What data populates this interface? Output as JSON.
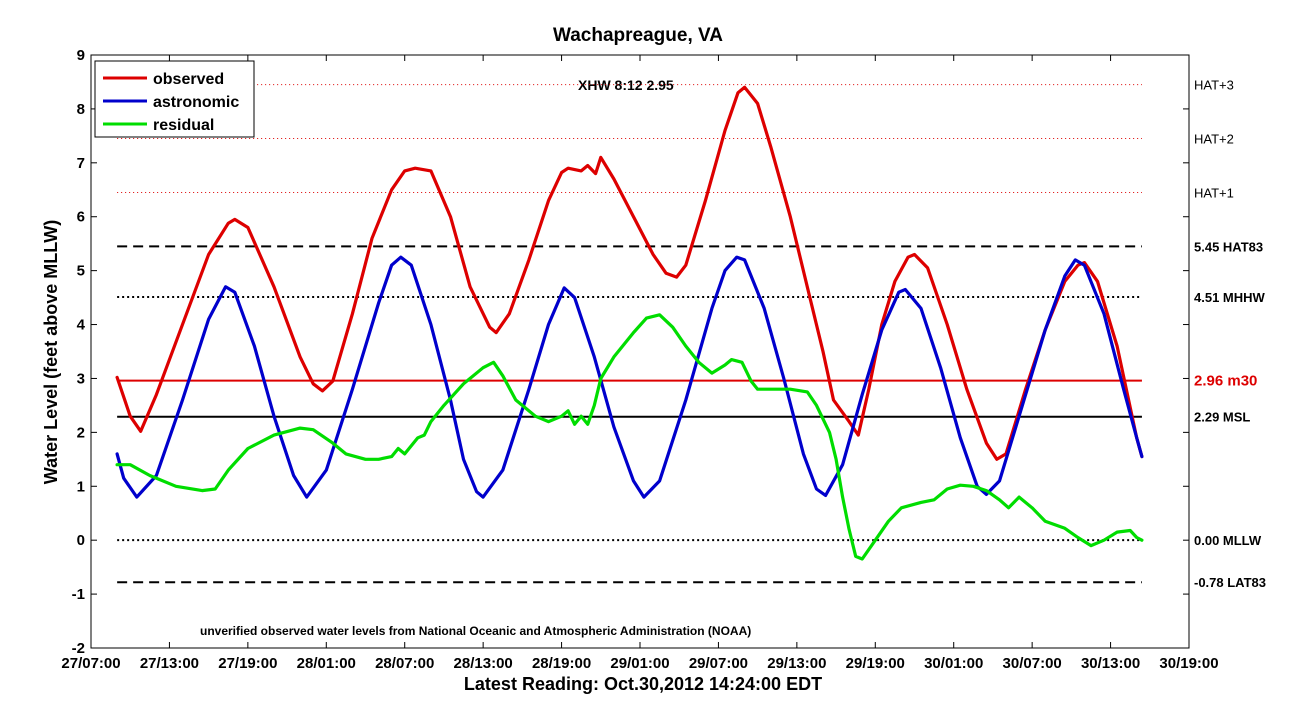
{
  "chart_data": {
    "type": "line",
    "title": "Wachapreague, VA",
    "ylabel": "Water Level (feet above MLLW)",
    "xlabel": "Latest Reading: Oct.30,2012 14:24:00 EDT",
    "note": "unverified observed water levels from National Oceanic and Atmospheric Administration (NOAA)",
    "annotation": "XHW 8:12 2.95",
    "xlim": [
      0,
      84
    ],
    "ylim": [
      -2,
      9
    ],
    "x_ticks": [
      {
        "x": 0,
        "label": "27/07:00"
      },
      {
        "x": 6,
        "label": "27/13:00"
      },
      {
        "x": 12,
        "label": "27/19:00"
      },
      {
        "x": 18,
        "label": "28/01:00"
      },
      {
        "x": 24,
        "label": "28/07:00"
      },
      {
        "x": 30,
        "label": "28/13:00"
      },
      {
        "x": 36,
        "label": "28/19:00"
      },
      {
        "x": 42,
        "label": "29/01:00"
      },
      {
        "x": 48,
        "label": "29/07:00"
      },
      {
        "x": 54,
        "label": "29/13:00"
      },
      {
        "x": 60,
        "label": "29/19:00"
      },
      {
        "x": 66,
        "label": "30/01:00"
      },
      {
        "x": 72,
        "label": "30/07:00"
      },
      {
        "x": 78,
        "label": "30/13:00"
      },
      {
        "x": 84,
        "label": "30/19:00"
      }
    ],
    "y_ticks": [
      -2,
      -1,
      0,
      1,
      2,
      3,
      4,
      5,
      6,
      7,
      8,
      9
    ],
    "grid": false,
    "legend_position": "top-left",
    "x_unit_note": "hours after 27/07:00",
    "series": [
      {
        "name": "observed",
        "color": "#dd0000",
        "points": [
          [
            2.0,
            3.02
          ],
          [
            3.0,
            2.3
          ],
          [
            3.8,
            2.02
          ],
          [
            5.0,
            2.7
          ],
          [
            7.0,
            4.0
          ],
          [
            9.0,
            5.3
          ],
          [
            10.5,
            5.88
          ],
          [
            11.0,
            5.95
          ],
          [
            12.0,
            5.8
          ],
          [
            14.0,
            4.7
          ],
          [
            16.0,
            3.4
          ],
          [
            17.0,
            2.9
          ],
          [
            17.7,
            2.77
          ],
          [
            18.5,
            2.95
          ],
          [
            20.0,
            4.2
          ],
          [
            21.5,
            5.6
          ],
          [
            23.0,
            6.5
          ],
          [
            24.0,
            6.85
          ],
          [
            24.8,
            6.9
          ],
          [
            26.0,
            6.85
          ],
          [
            27.5,
            6.0
          ],
          [
            29.0,
            4.7
          ],
          [
            30.5,
            3.95
          ],
          [
            31.0,
            3.85
          ],
          [
            32.0,
            4.2
          ],
          [
            33.5,
            5.2
          ],
          [
            35.0,
            6.3
          ],
          [
            36.0,
            6.82
          ],
          [
            36.5,
            6.9
          ],
          [
            37.5,
            6.85
          ],
          [
            38.0,
            6.95
          ],
          [
            38.6,
            6.8
          ],
          [
            39.0,
            7.1
          ],
          [
            40.0,
            6.7
          ],
          [
            41.5,
            6.0
          ],
          [
            43.0,
            5.3
          ],
          [
            44.0,
            4.95
          ],
          [
            44.8,
            4.88
          ],
          [
            45.5,
            5.1
          ],
          [
            47.0,
            6.3
          ],
          [
            48.5,
            7.6
          ],
          [
            49.5,
            8.3
          ],
          [
            50.0,
            8.4
          ],
          [
            51.0,
            8.1
          ],
          [
            52.0,
            7.3
          ],
          [
            53.5,
            6.0
          ],
          [
            55.0,
            4.5
          ],
          [
            56.0,
            3.5
          ],
          [
            56.8,
            2.6
          ],
          [
            58.0,
            2.2
          ],
          [
            58.7,
            1.95
          ],
          [
            59.5,
            2.8
          ],
          [
            60.5,
            4.0
          ],
          [
            61.5,
            4.8
          ],
          [
            62.5,
            5.25
          ],
          [
            63.0,
            5.3
          ],
          [
            64.0,
            5.05
          ],
          [
            65.5,
            4.0
          ],
          [
            67.0,
            2.8
          ],
          [
            68.5,
            1.8
          ],
          [
            69.3,
            1.5
          ],
          [
            70.0,
            1.6
          ],
          [
            71.5,
            2.8
          ],
          [
            73.0,
            3.9
          ],
          [
            74.5,
            4.8
          ],
          [
            75.5,
            5.1
          ],
          [
            76.0,
            5.15
          ],
          [
            77.0,
            4.8
          ],
          [
            78.5,
            3.6
          ],
          [
            80.0,
            1.9
          ],
          [
            80.4,
            1.55
          ]
        ]
      },
      {
        "name": "astronomic",
        "color": "#0000cc",
        "points": [
          [
            2.0,
            1.6
          ],
          [
            2.5,
            1.15
          ],
          [
            3.5,
            0.8
          ],
          [
            5.0,
            1.2
          ],
          [
            7.0,
            2.6
          ],
          [
            9.0,
            4.1
          ],
          [
            10.3,
            4.7
          ],
          [
            11.0,
            4.6
          ],
          [
            12.5,
            3.6
          ],
          [
            14.0,
            2.3
          ],
          [
            15.5,
            1.2
          ],
          [
            16.5,
            0.8
          ],
          [
            18.0,
            1.3
          ],
          [
            20.0,
            2.8
          ],
          [
            22.0,
            4.4
          ],
          [
            23.0,
            5.1
          ],
          [
            23.7,
            5.25
          ],
          [
            24.5,
            5.1
          ],
          [
            26.0,
            4.0
          ],
          [
            27.5,
            2.6
          ],
          [
            28.5,
            1.5
          ],
          [
            29.5,
            0.9
          ],
          [
            30.0,
            0.8
          ],
          [
            31.5,
            1.3
          ],
          [
            33.5,
            2.8
          ],
          [
            35.0,
            4.0
          ],
          [
            36.2,
            4.68
          ],
          [
            37.0,
            4.5
          ],
          [
            38.5,
            3.4
          ],
          [
            40.0,
            2.1
          ],
          [
            41.5,
            1.1
          ],
          [
            42.3,
            0.8
          ],
          [
            43.5,
            1.1
          ],
          [
            45.5,
            2.6
          ],
          [
            47.5,
            4.3
          ],
          [
            48.5,
            5.0
          ],
          [
            49.4,
            5.25
          ],
          [
            50.0,
            5.2
          ],
          [
            51.5,
            4.3
          ],
          [
            53.0,
            3.0
          ],
          [
            54.5,
            1.6
          ],
          [
            55.5,
            0.95
          ],
          [
            56.2,
            0.83
          ],
          [
            57.5,
            1.4
          ],
          [
            59.0,
            2.7
          ],
          [
            60.5,
            3.9
          ],
          [
            61.8,
            4.6
          ],
          [
            62.3,
            4.65
          ],
          [
            63.5,
            4.3
          ],
          [
            65.0,
            3.2
          ],
          [
            66.5,
            1.9
          ],
          [
            67.8,
            1.0
          ],
          [
            68.5,
            0.85
          ],
          [
            69.5,
            1.1
          ],
          [
            71.0,
            2.3
          ],
          [
            73.0,
            3.9
          ],
          [
            74.5,
            4.9
          ],
          [
            75.3,
            5.2
          ],
          [
            76.0,
            5.1
          ],
          [
            77.5,
            4.2
          ],
          [
            79.0,
            2.8
          ],
          [
            80.0,
            1.9
          ],
          [
            80.4,
            1.55
          ]
        ]
      },
      {
        "name": "residual",
        "color": "#00dd00",
        "points": [
          [
            2.0,
            1.4
          ],
          [
            3.0,
            1.4
          ],
          [
            4.5,
            1.2
          ],
          [
            6.5,
            1.0
          ],
          [
            8.5,
            0.92
          ],
          [
            9.5,
            0.95
          ],
          [
            10.5,
            1.3
          ],
          [
            12.0,
            1.7
          ],
          [
            14.0,
            1.95
          ],
          [
            16.0,
            2.08
          ],
          [
            17.0,
            2.05
          ],
          [
            18.5,
            1.8
          ],
          [
            19.5,
            1.6
          ],
          [
            21.0,
            1.5
          ],
          [
            22.0,
            1.5
          ],
          [
            23.0,
            1.55
          ],
          [
            23.5,
            1.7
          ],
          [
            24.0,
            1.6
          ],
          [
            25.0,
            1.9
          ],
          [
            25.5,
            1.95
          ],
          [
            26.0,
            2.2
          ],
          [
            27.0,
            2.5
          ],
          [
            28.5,
            2.9
          ],
          [
            30.0,
            3.2
          ],
          [
            30.8,
            3.3
          ],
          [
            31.5,
            3.05
          ],
          [
            32.5,
            2.6
          ],
          [
            34.0,
            2.3
          ],
          [
            35.0,
            2.2
          ],
          [
            36.0,
            2.3
          ],
          [
            36.5,
            2.4
          ],
          [
            37.0,
            2.15
          ],
          [
            37.5,
            2.3
          ],
          [
            38.0,
            2.15
          ],
          [
            38.5,
            2.5
          ],
          [
            39.0,
            3.0
          ],
          [
            40.0,
            3.4
          ],
          [
            41.5,
            3.85
          ],
          [
            42.5,
            4.12
          ],
          [
            43.5,
            4.18
          ],
          [
            44.5,
            3.95
          ],
          [
            45.5,
            3.6
          ],
          [
            46.5,
            3.3
          ],
          [
            47.5,
            3.1
          ],
          [
            48.5,
            3.25
          ],
          [
            49.0,
            3.35
          ],
          [
            49.8,
            3.3
          ],
          [
            50.5,
            2.95
          ],
          [
            51.0,
            2.8
          ],
          [
            52.5,
            2.8
          ],
          [
            53.5,
            2.8
          ],
          [
            54.8,
            2.75
          ],
          [
            55.5,
            2.5
          ],
          [
            56.5,
            2.0
          ],
          [
            57.0,
            1.5
          ],
          [
            57.5,
            0.8
          ],
          [
            58.0,
            0.2
          ],
          [
            58.5,
            -0.3
          ],
          [
            59.0,
            -0.35
          ],
          [
            60.0,
            0.0
          ],
          [
            61.0,
            0.35
          ],
          [
            62.0,
            0.6
          ],
          [
            63.5,
            0.7
          ],
          [
            64.5,
            0.75
          ],
          [
            65.5,
            0.95
          ],
          [
            66.5,
            1.02
          ],
          [
            67.5,
            1.0
          ],
          [
            68.5,
            0.92
          ],
          [
            69.5,
            0.75
          ],
          [
            70.2,
            0.6
          ],
          [
            71.0,
            0.8
          ],
          [
            72.0,
            0.6
          ],
          [
            73.0,
            0.35
          ],
          [
            74.5,
            0.22
          ],
          [
            75.5,
            0.05
          ],
          [
            76.5,
            -0.1
          ],
          [
            77.5,
            0.0
          ],
          [
            78.5,
            0.15
          ],
          [
            79.5,
            0.18
          ],
          [
            80.0,
            0.05
          ],
          [
            80.4,
            0.0
          ]
        ]
      }
    ],
    "reference_lines": [
      {
        "y": 8.45,
        "style": "red-dotted",
        "color": "#dd0000",
        "label": "HAT+3"
      },
      {
        "y": 7.45,
        "style": "red-dotted",
        "color": "#dd0000",
        "label": "HAT+2"
      },
      {
        "y": 6.45,
        "style": "red-dotted",
        "color": "#dd0000",
        "label": "HAT+1"
      },
      {
        "y": 5.45,
        "style": "dashed",
        "color": "#000000",
        "label": "5.45 HAT83"
      },
      {
        "y": 4.51,
        "style": "dotted",
        "color": "#000000",
        "label": "4.51 MHHW"
      },
      {
        "y": 2.96,
        "style": "solid",
        "color": "#dd0000",
        "label": "2.96 m30"
      },
      {
        "y": 2.29,
        "style": "solid",
        "color": "#000000",
        "label": "2.29 MSL"
      },
      {
        "y": 0.0,
        "style": "dotted",
        "color": "#000000",
        "label": "0.00 MLLW"
      },
      {
        "y": -0.78,
        "style": "dashed",
        "color": "#000000",
        "label": "-0.78 LAT83"
      }
    ],
    "reference_line_x_range": [
      2,
      80.4
    ]
  }
}
